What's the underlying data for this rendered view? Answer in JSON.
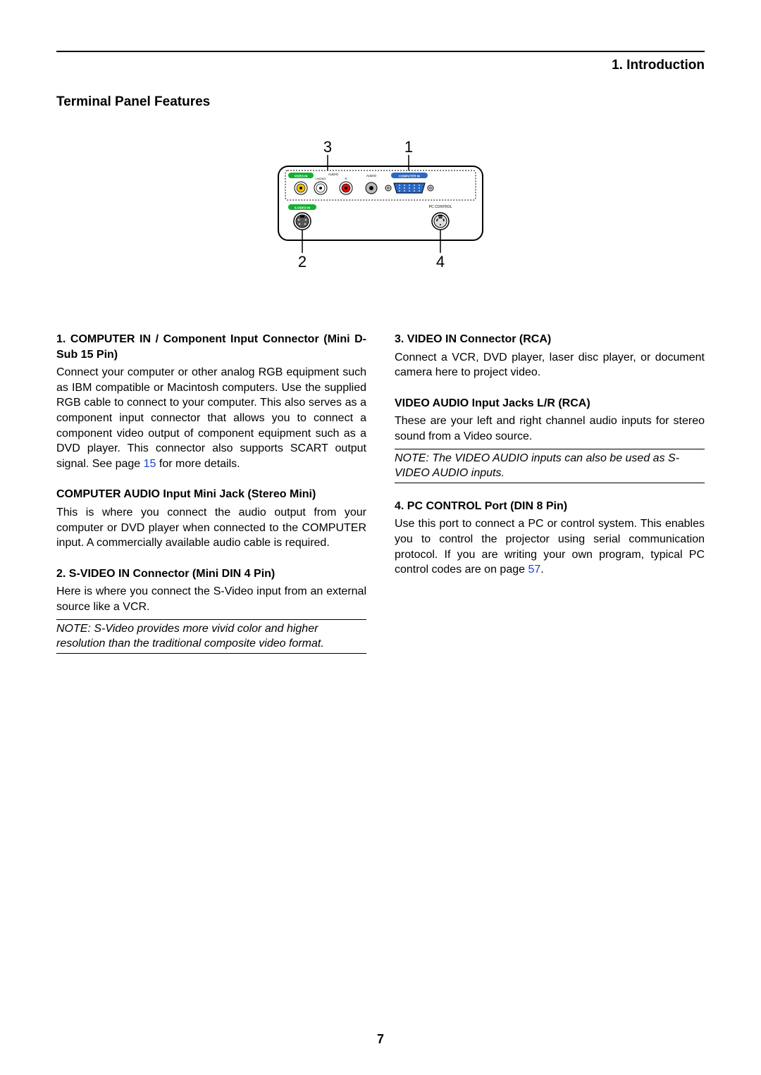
{
  "chapter": "1. Introduction",
  "sectionTitle": "Terminal Panel Features",
  "pageNumber": "7",
  "diagram": {
    "outerWidth": 310,
    "outerHeight": 120,
    "labels": {
      "top3": "3",
      "top1": "1",
      "bot2": "2",
      "bot4": "4"
    },
    "labelFontSize": 22,
    "labelColor": "#000000",
    "panelText": {
      "videoIn": "VIDEO IN",
      "audio": "AUDIO",
      "lmono": "L/MONO",
      "r": "R",
      "audio2": "AUDIO",
      "computerIn": "COMPUTER IN",
      "svideoIn": "S-VIDEO IN",
      "pcControl": "PC CONTROL"
    },
    "colors": {
      "videoPill": "#11b02e",
      "svideoPill": "#11b02e",
      "compPill": "#2a68c4",
      "rcaYellow": "#f6c106",
      "rcaWhite": "#ffffff",
      "rcaRed": "#e10e0e",
      "audioJack": "#bbbbbb",
      "vgaBody": "#2a68c4",
      "panelStroke": "#000000",
      "outerStroke": "#000000"
    }
  },
  "left": [
    {
      "title": "1. COMPUTER IN / Component Input Connector (Mini D-Sub 15 Pin)",
      "body": "Connect your computer or other analog RGB equipment such as IBM compatible or Macintosh computers. Use the supplied RGB cable to connect to your computer. This also serves as a component input connector that allows you to connect a component video output of component equipment such as a DVD player. This connector also supports SCART output signal. See page ",
      "linkText": "15",
      "bodyAfter": " for more details."
    },
    {
      "subTitle": "COMPUTER AUDIO Input Mini Jack (Stereo Mini)",
      "body": "This is where you connect the audio output from your computer or DVD player when connected to the COMPUTER input. A commercially available audio cable is required."
    },
    {
      "title": "2. S-VIDEO IN Connector (Mini DIN 4 Pin)",
      "body": "Here is where you connect the S-Video input from an external source like a VCR.",
      "note": "NOTE: S-Video provides more vivid color and higher resolution than the traditional composite video format."
    }
  ],
  "right": [
    {
      "title": "3. VIDEO IN Connector (RCA)",
      "body": "Connect a VCR, DVD player, laser disc player, or document camera here to project video."
    },
    {
      "subTitle": "VIDEO AUDIO Input Jacks L/R (RCA)",
      "body": "These are your left and right channel audio inputs for stereo sound from a Video source.",
      "note": "NOTE: The VIDEO AUDIO inputs can also be used as S-VIDEO AUDIO inputs."
    },
    {
      "title": "4. PC CONTROL Port (DIN 8 Pin)",
      "body": "Use this port to connect a PC or control system. This enables you to control the projector using serial communication protocol. If you are writing your own program, typical PC control codes are on page ",
      "linkText": "57",
      "bodyAfter": "."
    }
  ]
}
